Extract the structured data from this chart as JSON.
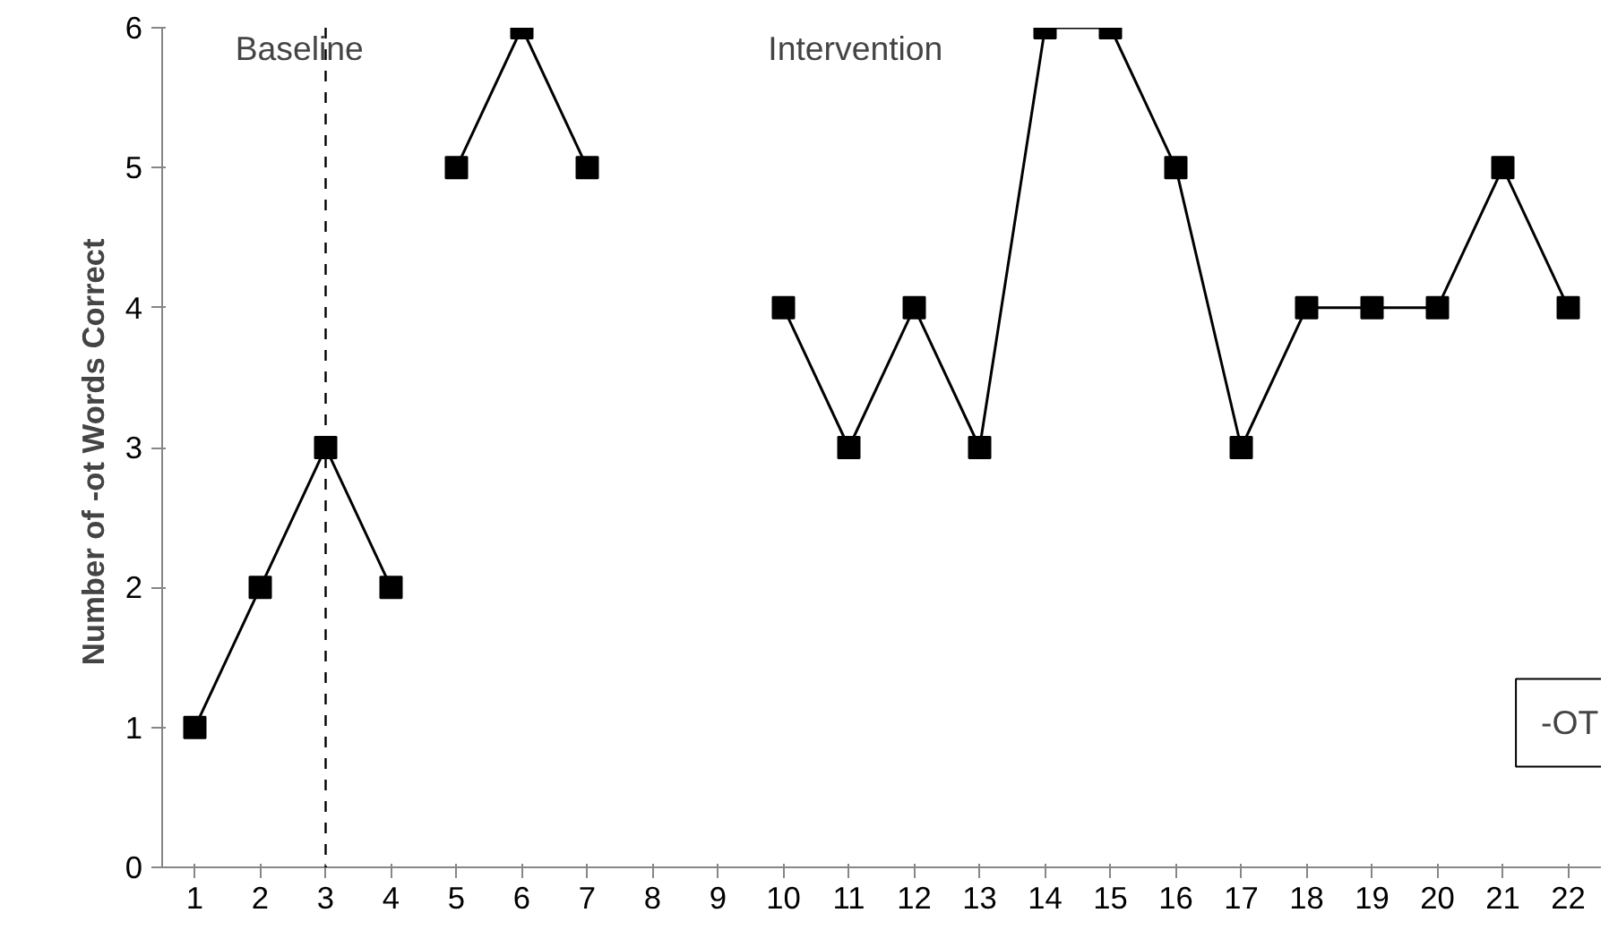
{
  "chart_data": {
    "type": "line",
    "ylabel": "Number of  -ot Words Correct",
    "xlim": [
      0.5,
      22.5
    ],
    "xticks": [
      1,
      2,
      3,
      4,
      5,
      6,
      7,
      8,
      9,
      10,
      11,
      12,
      13,
      14,
      15,
      16,
      17,
      18,
      19,
      20,
      21,
      22
    ],
    "ylim": [
      0,
      6
    ],
    "yticks": [
      0,
      1,
      2,
      3,
      4,
      5,
      6
    ],
    "series": [
      {
        "color": "#000000",
        "x": [
          1,
          2,
          3,
          4
        ],
        "values": [
          1,
          2,
          3,
          2
        ]
      },
      {
        "color": "#000000",
        "x": [
          5,
          6,
          7
        ],
        "values": [
          5,
          6,
          5
        ]
      },
      {
        "color": "#000000",
        "x": [
          10,
          11,
          12,
          13,
          14,
          15,
          16,
          17,
          18,
          19,
          20,
          21,
          22
        ],
        "values": [
          4,
          3,
          4,
          3,
          6,
          6,
          5,
          3,
          4,
          4,
          4,
          5,
          4
        ]
      }
    ],
    "marker": "square",
    "line_style": "solid",
    "grid": false,
    "ref_lines": [
      {
        "axis": "x",
        "value": 3,
        "line_style": "dashed",
        "color": "#000000"
      }
    ],
    "annotations": [
      "Baseline",
      "Intervention",
      "-OT"
    ]
  }
}
